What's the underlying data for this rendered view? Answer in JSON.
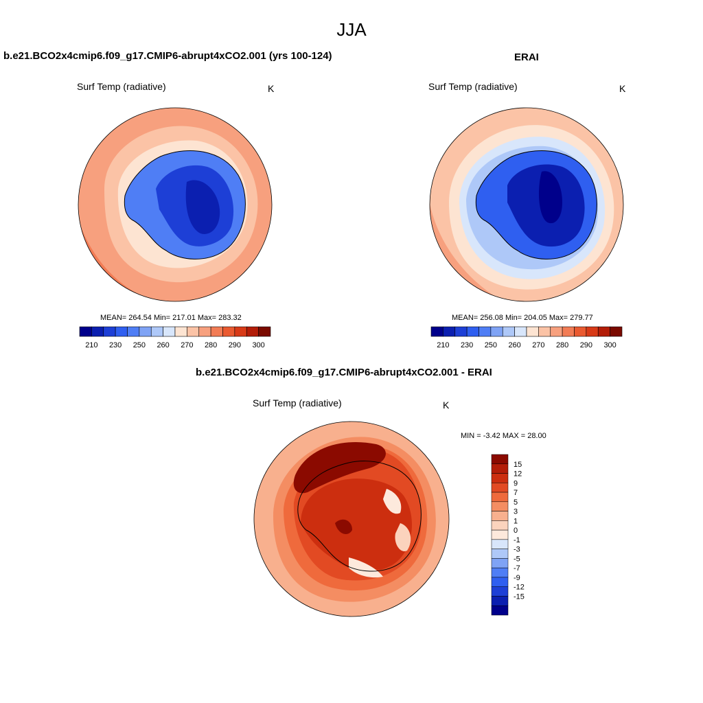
{
  "page_title": "JJA",
  "panels": [
    {
      "title": "b.e21.BCO2x4cmip6.f09_g17.CMIP6-abrupt4xCO2.001 (yrs 100-124)",
      "variable": "Surf Temp (radiative)",
      "units": "K",
      "stats": "MEAN= 264.54  Min= 217.01  Max= 283.32"
    },
    {
      "title": "ERAI",
      "variable": "Surf Temp (radiative)",
      "units": "K",
      "stats": "MEAN= 256.08  Min= 204.05  Max= 279.77"
    },
    {
      "title": "b.e21.BCO2x4cmip6.f09_g17.CMIP6-abrupt4xCO2.001 - ERAI",
      "variable": "Surf Temp (radiative)",
      "units": "K",
      "stats": "MIN =  -3.42 MAX =  28.00"
    }
  ],
  "abs_colorbar": {
    "labels": [
      "210",
      "230",
      "250",
      "260",
      "270",
      "280",
      "290",
      "300"
    ],
    "colors": [
      "#00008b",
      "#0b1fb0",
      "#1d3fd6",
      "#2f5ff0",
      "#4f7ef5",
      "#7fa3f5",
      "#aec8f8",
      "#d8e6fb",
      "#fde4d2",
      "#fbc3a6",
      "#f7a07e",
      "#f27c55",
      "#ea5a30",
      "#d83a17",
      "#b31d08",
      "#7a0a00"
    ]
  },
  "diff_colorbar": {
    "labels": [
      "15",
      "12",
      "9",
      "7",
      "5",
      "3",
      "1",
      "0",
      "-1",
      "-3",
      "-5",
      "-7",
      "-9",
      "-12",
      "-15"
    ],
    "colors": [
      "#8b0a00",
      "#b31d08",
      "#cc2e0f",
      "#e24a23",
      "#ef6a3c",
      "#f48d62",
      "#f8b08e",
      "#fbd3bd",
      "#fde9dc",
      "#d8e6fb",
      "#aec8f8",
      "#7fa3f5",
      "#4f7ef5",
      "#2f5ff0",
      "#1d3fd6",
      "#0b1fb0",
      "#00008b"
    ]
  }
}
